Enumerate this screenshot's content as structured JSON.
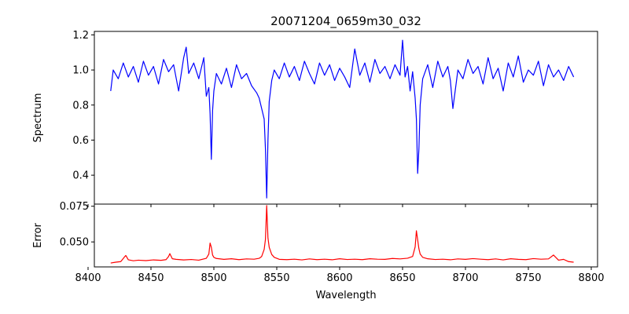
{
  "chart_data": [
    {
      "type": "line",
      "title": "20071204_0659m30_032",
      "xlabel": "",
      "ylabel": "Spectrum",
      "xlim": [
        8405,
        8805
      ],
      "ylim": [
        0.235,
        1.22
      ],
      "x_ticks": [
        8400,
        8450,
        8500,
        8550,
        8600,
        8650,
        8700,
        8750,
        8800
      ],
      "y_ticks": [
        0.4,
        0.6,
        0.8,
        1.0,
        1.2
      ],
      "y_tick_labels": [
        "0.4",
        "0.6",
        "0.8",
        "1.0",
        "1.2"
      ],
      "x_tick_labels_shown": false,
      "color": "#0000ff",
      "series": [
        {
          "x": [
            8418,
            8420,
            8424,
            8428,
            8432,
            8436,
            8440,
            8444,
            8448,
            8452,
            8456,
            8460,
            8464,
            8468,
            8472,
            8476,
            8478,
            8480,
            8484,
            8488,
            8492,
            8494,
            8496,
            8497,
            8498,
            8499,
            8500,
            8502,
            8506,
            8510,
            8514,
            8518,
            8522,
            8526,
            8530,
            8534,
            8536,
            8538,
            8540,
            8541,
            8542,
            8543,
            8544,
            8546,
            8548,
            8552,
            8556,
            8560,
            8564,
            8568,
            8572,
            8576,
            8580,
            8584,
            8588,
            8592,
            8596,
            8600,
            8604,
            8608,
            8612,
            8616,
            8620,
            8624,
            8628,
            8632,
            8636,
            8640,
            8644,
            8648,
            8650,
            8652,
            8654,
            8656,
            8658,
            8660,
            8661,
            8662,
            8663,
            8664,
            8666,
            8670,
            8674,
            8678,
            8682,
            8686,
            8688,
            8690,
            8694,
            8698,
            8702,
            8706,
            8710,
            8714,
            8718,
            8722,
            8726,
            8730,
            8734,
            8738,
            8742,
            8746,
            8750,
            8754,
            8758,
            8762,
            8766,
            8770,
            8774,
            8778,
            8782,
            8786
          ],
          "y": [
            0.88,
            1.0,
            0.95,
            1.04,
            0.96,
            1.02,
            0.93,
            1.05,
            0.97,
            1.02,
            0.92,
            1.06,
            0.99,
            1.03,
            0.88,
            1.07,
            1.13,
            0.98,
            1.04,
            0.95,
            1.07,
            0.85,
            0.9,
            0.75,
            0.49,
            0.77,
            0.88,
            0.98,
            0.92,
            1.01,
            0.9,
            1.03,
            0.95,
            0.98,
            0.91,
            0.87,
            0.84,
            0.78,
            0.72,
            0.55,
            0.27,
            0.6,
            0.82,
            0.94,
            1.0,
            0.95,
            1.04,
            0.96,
            1.02,
            0.94,
            1.05,
            0.98,
            0.92,
            1.04,
            0.97,
            1.03,
            0.94,
            1.01,
            0.96,
            0.9,
            1.12,
            0.97,
            1.04,
            0.93,
            1.06,
            0.98,
            1.02,
            0.95,
            1.03,
            0.97,
            1.17,
            0.96,
            1.02,
            0.88,
            0.99,
            0.84,
            0.72,
            0.41,
            0.55,
            0.8,
            0.95,
            1.03,
            0.9,
            1.05,
            0.96,
            1.02,
            0.94,
            0.78,
            1.0,
            0.95,
            1.06,
            0.98,
            1.02,
            0.92,
            1.07,
            0.95,
            1.01,
            0.88,
            1.04,
            0.96,
            1.08,
            0.93,
            1.0,
            0.97,
            1.05,
            0.91,
            1.03,
            0.96,
            1.0,
            0.94,
            1.02,
            0.96
          ]
        }
      ]
    },
    {
      "type": "line",
      "title": "",
      "xlabel": "Wavelength",
      "ylabel": "Error",
      "xlim": [
        8405,
        8805
      ],
      "ylim": [
        0.0325,
        0.0765
      ],
      "x_ticks": [
        8400,
        8450,
        8500,
        8550,
        8600,
        8650,
        8700,
        8750,
        8800
      ],
      "x_tick_labels": [
        "8400",
        "8450",
        "8500",
        "8550",
        "8600",
        "8650",
        "8700",
        "8750",
        "8800"
      ],
      "y_ticks": [
        0.05,
        0.075
      ],
      "y_tick_labels": [
        "0.050",
        "0.075"
      ],
      "color": "#ff0000",
      "series": [
        {
          "x": [
            8418,
            8422,
            8426,
            8429,
            8430,
            8432,
            8436,
            8440,
            8446,
            8452,
            8458,
            8462,
            8464,
            8465,
            8467,
            8470,
            8476,
            8482,
            8488,
            8494,
            8496,
            8497,
            8498,
            8499,
            8500,
            8502,
            8508,
            8514,
            8520,
            8526,
            8532,
            8536,
            8538,
            8540,
            8541,
            8542,
            8543,
            8544,
            8546,
            8548,
            8552,
            8558,
            8564,
            8570,
            8576,
            8582,
            8588,
            8594,
            8600,
            8606,
            8612,
            8618,
            8624,
            8630,
            8636,
            8642,
            8648,
            8654,
            8658,
            8660,
            8661,
            8662,
            8663,
            8664,
            8666,
            8670,
            8676,
            8682,
            8688,
            8694,
            8700,
            8706,
            8712,
            8718,
            8724,
            8730,
            8736,
            8742,
            8748,
            8754,
            8760,
            8766,
            8770,
            8774,
            8778,
            8782,
            8786
          ],
          "y": [
            0.0352,
            0.0358,
            0.0362,
            0.0395,
            0.0405,
            0.0375,
            0.0368,
            0.0372,
            0.0369,
            0.0374,
            0.0371,
            0.0376,
            0.0398,
            0.0418,
            0.0382,
            0.0378,
            0.0374,
            0.0377,
            0.0372,
            0.0385,
            0.0415,
            0.0492,
            0.0462,
            0.0408,
            0.0392,
            0.0384,
            0.0378,
            0.0382,
            0.0376,
            0.0381,
            0.0379,
            0.0385,
            0.0398,
            0.0448,
            0.0518,
            0.0755,
            0.0528,
            0.0462,
            0.0412,
            0.0392,
            0.0378,
            0.0376,
            0.0379,
            0.0374,
            0.0381,
            0.0376,
            0.0379,
            0.0375,
            0.0382,
            0.0377,
            0.0379,
            0.0376,
            0.0382,
            0.0379,
            0.0378,
            0.0384,
            0.0381,
            0.0386,
            0.0398,
            0.0465,
            0.0578,
            0.0515,
            0.0452,
            0.0415,
            0.0392,
            0.0382,
            0.0377,
            0.0379,
            0.0375,
            0.0381,
            0.0378,
            0.0383,
            0.0379,
            0.0376,
            0.0381,
            0.0374,
            0.0382,
            0.0378,
            0.0376,
            0.0383,
            0.0379,
            0.0381,
            0.0408,
            0.0372,
            0.0378,
            0.0362,
            0.0358
          ]
        }
      ]
    }
  ]
}
